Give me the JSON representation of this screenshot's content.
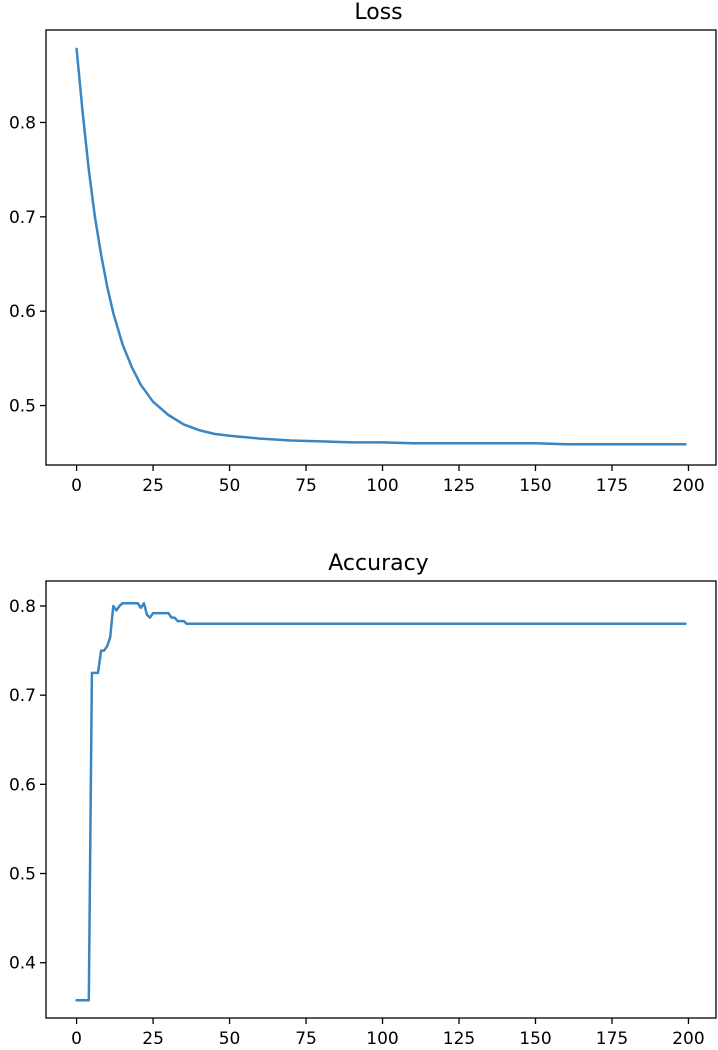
{
  "colors": {
    "series": "#3a86c2"
  },
  "chart_data": [
    {
      "type": "line",
      "title": "Loss",
      "xlabel": "",
      "ylabel": "",
      "xlim": [
        -10,
        209
      ],
      "ylim": [
        0.437,
        0.898
      ],
      "xticks": [
        0,
        25,
        50,
        75,
        100,
        125,
        150,
        175,
        200
      ],
      "yticks": [
        0.5,
        0.6,
        0.7,
        0.8
      ],
      "xtick_labels": [
        "0",
        "25",
        "50",
        "75",
        "100",
        "125",
        "150",
        "175",
        "200"
      ],
      "ytick_labels": [
        "0.5",
        "0.6",
        "0.7",
        "0.8"
      ],
      "grid": false,
      "legend": "none",
      "series": [
        {
          "x": [
            0,
            2,
            4,
            6,
            8,
            10,
            12,
            15,
            18,
            21,
            25,
            30,
            35,
            40,
            45,
            50,
            60,
            70,
            80,
            90,
            100,
            110,
            125,
            140,
            150,
            160,
            175,
            190,
            199
          ],
          "values": [
            0.878,
            0.81,
            0.75,
            0.7,
            0.66,
            0.626,
            0.598,
            0.565,
            0.541,
            0.522,
            0.504,
            0.49,
            0.48,
            0.474,
            0.47,
            0.468,
            0.465,
            0.463,
            0.462,
            0.461,
            0.461,
            0.46,
            0.46,
            0.46,
            0.46,
            0.459,
            0.459,
            0.459,
            0.459
          ]
        }
      ]
    },
    {
      "type": "line",
      "title": "Accuracy",
      "xlabel": "",
      "ylabel": "",
      "xlim": [
        -10,
        209
      ],
      "ylim": [
        0.338,
        0.828
      ],
      "xticks": [
        0,
        25,
        50,
        75,
        100,
        125,
        150,
        175,
        200
      ],
      "yticks": [
        0.4,
        0.5,
        0.6,
        0.7,
        0.8
      ],
      "xtick_labels": [
        "0",
        "25",
        "50",
        "75",
        "100",
        "125",
        "150",
        "175",
        "200"
      ],
      "ytick_labels": [
        "0.4",
        "0.5",
        "0.6",
        "0.7",
        "0.8"
      ],
      "grid": false,
      "legend": "none",
      "series": [
        {
          "x": [
            0,
            1,
            2,
            3,
            4,
            5,
            6,
            7,
            8,
            9,
            10,
            11,
            12,
            13,
            14,
            15,
            16,
            17,
            18,
            19,
            20,
            21,
            22,
            23,
            24,
            25,
            26,
            27,
            28,
            29,
            30,
            31,
            32,
            33,
            34,
            35,
            36,
            40,
            60,
            100,
            150,
            199
          ],
          "values": [
            0.358,
            0.358,
            0.358,
            0.358,
            0.358,
            0.725,
            0.725,
            0.725,
            0.75,
            0.75,
            0.755,
            0.765,
            0.8,
            0.795,
            0.8,
            0.803,
            0.803,
            0.803,
            0.803,
            0.803,
            0.803,
            0.798,
            0.803,
            0.79,
            0.787,
            0.792,
            0.792,
            0.792,
            0.792,
            0.792,
            0.792,
            0.787,
            0.787,
            0.783,
            0.783,
            0.783,
            0.78,
            0.78,
            0.78,
            0.78,
            0.78,
            0.78
          ]
        }
      ]
    }
  ]
}
